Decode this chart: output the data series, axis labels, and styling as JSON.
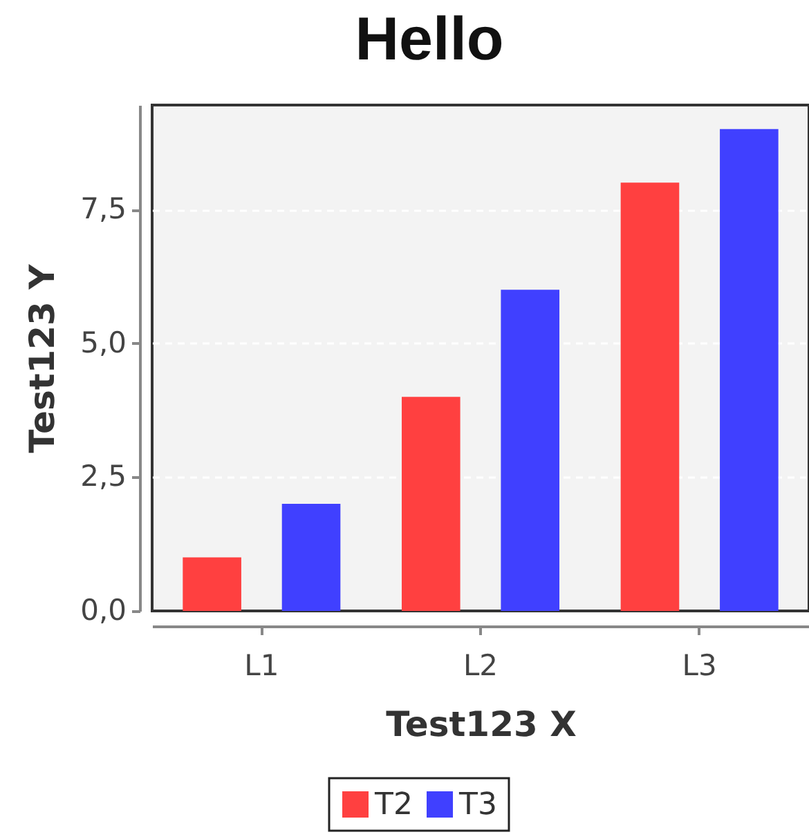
{
  "chart_data": {
    "type": "bar",
    "title": "Hello",
    "xlabel": "Test123 X",
    "ylabel": "Test123 Y",
    "categories": [
      "L1",
      "L2",
      "L3"
    ],
    "series": [
      {
        "name": "T2",
        "color": "#ff4040",
        "values": [
          1,
          4,
          8
        ]
      },
      {
        "name": "T3",
        "color": "#4040ff",
        "values": [
          2,
          6,
          9
        ]
      }
    ],
    "ylim": [
      0,
      9.45
    ],
    "yticks": [
      {
        "value": 0,
        "label": "0,0"
      },
      {
        "value": 2.5,
        "label": "2,5"
      },
      {
        "value": 5,
        "label": "5,0"
      },
      {
        "value": 7.5,
        "label": "7,5"
      }
    ],
    "grid": "y",
    "legend": "bottom"
  }
}
